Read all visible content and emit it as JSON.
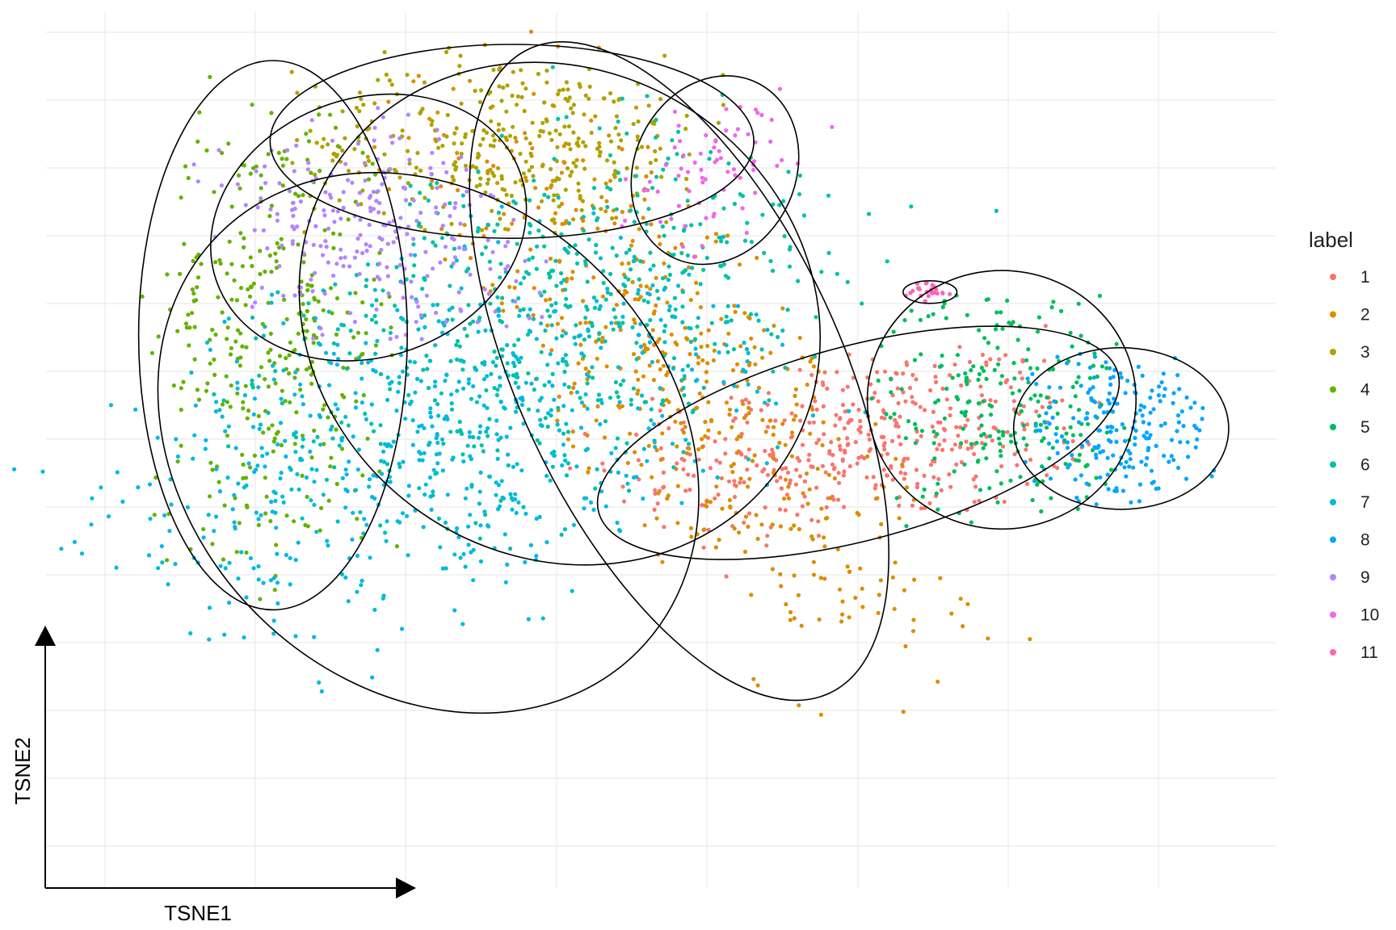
{
  "chart_data": {
    "type": "scatter",
    "xlabel": "TSNE1",
    "ylabel": "TSNE2",
    "legend_title": "label",
    "legend_position": "right",
    "grid": true,
    "colors": {
      "1": "#F8766D",
      "2": "#DB8E00",
      "3": "#AEA200",
      "4": "#64B200",
      "5": "#00BD5C",
      "6": "#00C1A7",
      "7": "#00BADE",
      "8": "#00A6FF",
      "9": "#B385FF",
      "10": "#EF67EB",
      "11": "#FF63B6"
    },
    "series": [
      {
        "name": "1",
        "center": [
          58,
          42
        ],
        "spread": [
          10,
          6
        ],
        "tilt": 15,
        "n": 420
      },
      {
        "name": "2",
        "center": [
          43,
          52
        ],
        "spread": [
          6,
          22
        ],
        "tilt": 25,
        "n": 520
      },
      {
        "name": "3",
        "center": [
          29,
          84
        ],
        "spread": [
          9,
          6
        ],
        "tilt": 0,
        "n": 330
      },
      {
        "name": "4",
        "center": [
          9,
          57
        ],
        "spread": [
          5,
          17
        ],
        "tilt": 0,
        "n": 330
      },
      {
        "name": "5",
        "center": [
          70,
          48
        ],
        "spread": [
          5,
          8
        ],
        "tilt": 0,
        "n": 230
      },
      {
        "name": "6",
        "center": [
          33,
          60
        ],
        "spread": [
          10,
          15
        ],
        "tilt": -35,
        "n": 560
      },
      {
        "name": "7",
        "center": [
          22,
          42
        ],
        "spread": [
          11,
          15
        ],
        "tilt": -45,
        "n": 680
      },
      {
        "name": "8",
        "center": [
          80,
          44
        ],
        "spread": [
          4,
          5
        ],
        "tilt": 0,
        "n": 200
      },
      {
        "name": "9",
        "center": [
          17,
          72
        ],
        "spread": [
          6,
          8
        ],
        "tilt": 20,
        "n": 240
      },
      {
        "name": "10",
        "center": [
          46,
          80
        ],
        "spread": [
          3,
          6
        ],
        "tilt": -25,
        "n": 70
      },
      {
        "name": "11",
        "center": [
          64,
          63
        ],
        "spread": [
          1,
          0.7
        ],
        "tilt": 0,
        "n": 25
      }
    ]
  },
  "legend_items": [
    "1",
    "2",
    "3",
    "4",
    "5",
    "6",
    "7",
    "8",
    "9",
    "10",
    "11"
  ]
}
